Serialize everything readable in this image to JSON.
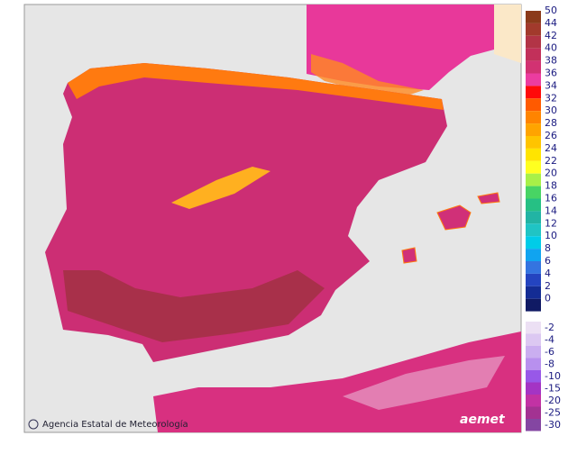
{
  "legend": {
    "items": [
      {
        "label": 50,
        "color": "#8b3a1a"
      },
      {
        "label": 44,
        "color": "#a23a2c"
      },
      {
        "label": 42,
        "color": "#b23446"
      },
      {
        "label": 40,
        "color": "#c2305a"
      },
      {
        "label": 38,
        "color": "#d23272"
      },
      {
        "label": 36,
        "color": "#ec3ca0"
      },
      {
        "label": 34,
        "color": "#ff0a0a"
      },
      {
        "label": 32,
        "color": "#ff5a00"
      },
      {
        "label": 30,
        "color": "#ff8400"
      },
      {
        "label": 28,
        "color": "#ffa400"
      },
      {
        "label": 26,
        "color": "#ffc400"
      },
      {
        "label": 24,
        "color": "#ffe400"
      },
      {
        "label": 22,
        "color": "#ffff20"
      },
      {
        "label": 20,
        "color": "#a8f048"
      },
      {
        "label": 18,
        "color": "#48d464"
      },
      {
        "label": 16,
        "color": "#26c084"
      },
      {
        "label": 14,
        "color": "#22b4a4"
      },
      {
        "label": 12,
        "color": "#20c4c4"
      },
      {
        "label": 10,
        "color": "#00cce8"
      },
      {
        "label": 8,
        "color": "#10a4f0"
      },
      {
        "label": 6,
        "color": "#3474e0"
      },
      {
        "label": 4,
        "color": "#2444c0"
      },
      {
        "label": 2,
        "color": "#142c94"
      },
      {
        "label": 0,
        "color": "#101a64"
      }
    ],
    "negative_items": [
      {
        "label": -2,
        "color": "#ece0f4"
      },
      {
        "label": -4,
        "color": "#dcc8f2"
      },
      {
        "label": -6,
        "color": "#caaef0"
      },
      {
        "label": -8,
        "color": "#b890ee"
      },
      {
        "label": -10,
        "color": "#9858e8"
      },
      {
        "label": -15,
        "color": "#a434c4"
      },
      {
        "label": -20,
        "color": "#c232a4"
      },
      {
        "label": -25,
        "color": "#a33292"
      },
      {
        "label": -30,
        "color": "#8446a2"
      }
    ]
  },
  "footer": {
    "agency": "Agencia Estatal de Meteorología",
    "logo": "aemet"
  }
}
